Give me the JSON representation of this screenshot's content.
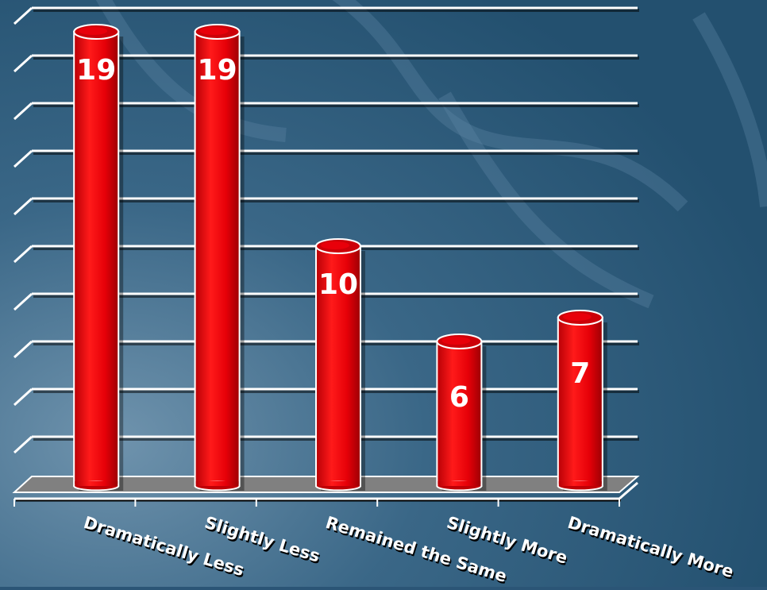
{
  "chart_data": {
    "type": "bar",
    "categories": [
      "Dramatically Less",
      "Slightly Less",
      "Remained the Same",
      "Slightly More",
      "Dramatically More"
    ],
    "values": [
      19,
      19,
      10,
      6,
      7
    ],
    "ylim": [
      0,
      20
    ],
    "grid": true,
    "bar_color": "#e8000a",
    "grid_color": "#ffffff",
    "floor_color": "#808080"
  }
}
